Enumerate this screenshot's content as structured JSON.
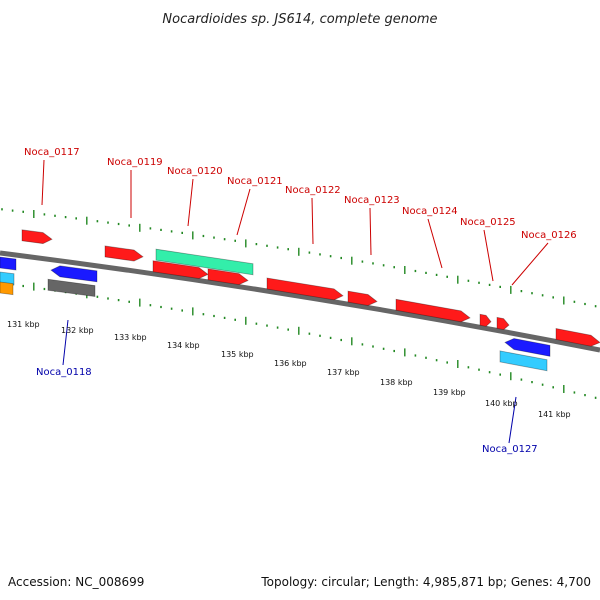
{
  "title": "Nocardioides sp. JS614, complete genome",
  "footer": {
    "accession": "Accession: NC_008699",
    "summary": "Topology: circular; Length: 4,985,871 bp; Genes: 4,700"
  },
  "colors": {
    "forward_label": "#cc0000",
    "reverse_label": "#0000aa",
    "backbone": "#888888",
    "tick_ring": "#228822",
    "red": "#ff1a1a",
    "blue": "#1a1aff",
    "green": "#33eeaa",
    "cyan": "#33ccff",
    "gray": "#666666",
    "orange": "#ff9900"
  },
  "kbp_labels": [
    "131 kbp",
    "132 kbp",
    "133 kbp",
    "134 kbp",
    "135 kbp",
    "136 kbp",
    "137 kbp",
    "138 kbp",
    "139 kbp",
    "140 kbp",
    "141 kbp"
  ],
  "gene_labels": [
    {
      "text": "Noca_0117",
      "strand": "forward"
    },
    {
      "text": "Noca_0118",
      "strand": "reverse"
    },
    {
      "text": "Noca_0119",
      "strand": "forward"
    },
    {
      "text": "Noca_0120",
      "strand": "forward"
    },
    {
      "text": "Noca_0121",
      "strand": "forward"
    },
    {
      "text": "Noca_0122",
      "strand": "forward"
    },
    {
      "text": "Noca_0123",
      "strand": "forward"
    },
    {
      "text": "Noca_0124",
      "strand": "forward"
    },
    {
      "text": "Noca_0125",
      "strand": "forward"
    },
    {
      "text": "Noca_0126",
      "strand": "forward"
    },
    {
      "text": "Noca_0127",
      "strand": "reverse"
    }
  ],
  "features": [
    {
      "color": "red",
      "strand": "forward"
    },
    {
      "color": "red",
      "strand": "forward"
    },
    {
      "color": "green",
      "strand": "forward"
    },
    {
      "color": "red",
      "strand": "forward"
    },
    {
      "color": "red",
      "strand": "forward"
    },
    {
      "color": "red",
      "strand": "forward"
    },
    {
      "color": "red",
      "strand": "forward"
    },
    {
      "color": "red",
      "strand": "forward"
    },
    {
      "color": "red",
      "strand": "forward"
    },
    {
      "color": "red",
      "strand": "forward"
    },
    {
      "color": "red",
      "strand": "forward"
    },
    {
      "color": "blue",
      "strand": "reverse"
    },
    {
      "color": "blue",
      "strand": "reverse"
    },
    {
      "color": "cyan",
      "strand": "reverse"
    },
    {
      "color": "orange",
      "strand": "reverse"
    },
    {
      "color": "blue",
      "strand": "reverse"
    },
    {
      "color": "gray",
      "strand": "reverse"
    },
    {
      "color": "cyan",
      "strand": "reverse"
    }
  ]
}
